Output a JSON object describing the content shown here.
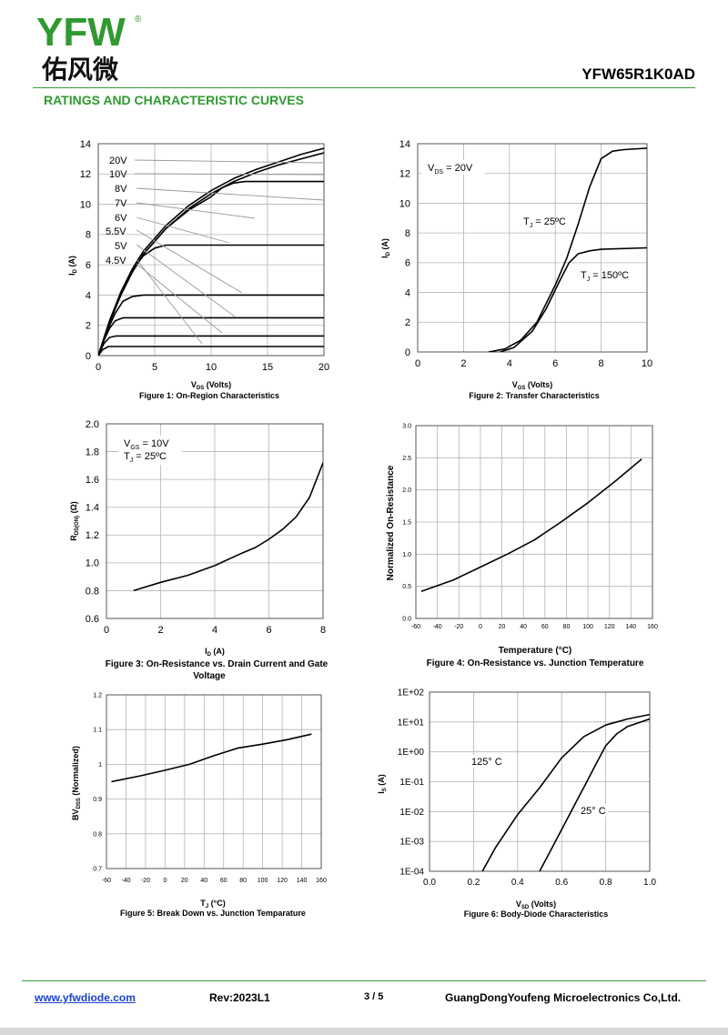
{
  "header": {
    "logo_latin": "YFW",
    "logo_registered": "®",
    "logo_chinese": "佑风微",
    "part_number": "YFW65R1K0AD",
    "section_title": "RATINGS AND CHARACTERISTIC CURVES"
  },
  "colors": {
    "brand_green": "#2f9a2f",
    "brand_yellow": "#f2c300",
    "link_blue": "#1a3fd0",
    "curve": "#000000",
    "grid": "#b4b4b4",
    "guide": "#999999"
  },
  "chart_data": [
    {
      "id": "fig1",
      "type": "line",
      "caption": "Figure 1: On-Region Characteristics",
      "xlabel_main": "V",
      "xlabel_sub": "DS",
      "xlabel_rest": " (Volts)",
      "ylabel_main": "I",
      "ylabel_sub": "D",
      "ylabel_rest": " (A)",
      "xlim": [
        0,
        20
      ],
      "ylim": [
        0,
        14
      ],
      "xticks": [
        "0",
        "5",
        "10",
        "15",
        "20"
      ],
      "yticks": [
        "0",
        "2",
        "4",
        "6",
        "8",
        "10",
        "12",
        "14"
      ],
      "series": [
        {
          "name": "20V",
          "points": [
            [
              0,
              0
            ],
            [
              1,
              2.3
            ],
            [
              2,
              4.2
            ],
            [
              3,
              5.7
            ],
            [
              4,
              6.9
            ],
            [
              6,
              8.6
            ],
            [
              8,
              9.9
            ],
            [
              10,
              10.9
            ],
            [
              12,
              11.7
            ],
            [
              14,
              12.3
            ],
            [
              16,
              12.8
            ],
            [
              18,
              13.3
            ],
            [
              20,
              13.7
            ]
          ]
        },
        {
          "name": "10V",
          "points": [
            [
              0,
              0
            ],
            [
              1,
              2.2
            ],
            [
              2,
              4.0
            ],
            [
              3,
              5.5
            ],
            [
              4,
              6.7
            ],
            [
              6,
              8.4
            ],
            [
              8,
              9.7
            ],
            [
              10,
              10.7
            ],
            [
              12,
              11.5
            ],
            [
              14,
              12.1
            ],
            [
              16,
              12.6
            ],
            [
              18,
              13.0
            ],
            [
              20,
              13.4
            ]
          ]
        },
        {
          "name": "8V",
          "points": [
            [
              0,
              0
            ],
            [
              1,
              2.2
            ],
            [
              2,
              4.0
            ],
            [
              3,
              5.5
            ],
            [
              4,
              6.7
            ],
            [
              6,
              8.4
            ],
            [
              8,
              9.6
            ],
            [
              10,
              10.5
            ],
            [
              11,
              11.1
            ],
            [
              12,
              11.4
            ],
            [
              13,
              11.5
            ],
            [
              20,
              11.5
            ]
          ]
        },
        {
          "name": "7V",
          "points": [
            [
              0,
              0
            ],
            [
              1,
              2.3
            ],
            [
              2,
              4.1
            ],
            [
              3,
              5.6
            ],
            [
              4,
              6.6
            ],
            [
              5,
              7.1
            ],
            [
              6,
              7.3
            ],
            [
              20,
              7.3
            ]
          ]
        },
        {
          "name": "6V",
          "points": [
            [
              0,
              0
            ],
            [
              0.7,
              1.5
            ],
            [
              1.5,
              2.8
            ],
            [
              2.2,
              3.6
            ],
            [
              3,
              3.9
            ],
            [
              4,
              4.0
            ],
            [
              20,
              4.0
            ]
          ]
        },
        {
          "name": "5.5V",
          "points": [
            [
              0,
              0
            ],
            [
              0.5,
              1.0
            ],
            [
              1,
              1.8
            ],
            [
              1.5,
              2.3
            ],
            [
              2.2,
              2.5
            ],
            [
              3,
              2.5
            ],
            [
              20,
              2.5
            ]
          ]
        },
        {
          "name": "5V",
          "points": [
            [
              0,
              0
            ],
            [
              0.5,
              0.8
            ],
            [
              1,
              1.2
            ],
            [
              1.6,
              1.3
            ],
            [
              20,
              1.3
            ]
          ]
        },
        {
          "name": "4.5V",
          "points": [
            [
              0,
              0
            ],
            [
              0.4,
              0.4
            ],
            [
              0.9,
              0.6
            ],
            [
              20,
              0.6
            ]
          ]
        }
      ],
      "annotations": [
        "20V",
        "10V",
        "8V",
        "7V",
        "6V",
        "5.5V",
        "5V",
        "4.5V"
      ]
    },
    {
      "id": "fig2",
      "type": "line",
      "caption": "Figure 2: Transfer Characteristics",
      "xlabel_main": "V",
      "xlabel_sub": "GS",
      "xlabel_rest": " (Volts)",
      "ylabel_main": "I",
      "ylabel_sub": "D",
      "ylabel_rest": " (A)",
      "xlim": [
        0,
        10
      ],
      "ylim": [
        0,
        14
      ],
      "xticks": [
        "0",
        "2",
        "4",
        "6",
        "8",
        "10"
      ],
      "yticks": [
        "0",
        "2",
        "4",
        "6",
        "8",
        "10",
        "12",
        "14"
      ],
      "series": [
        {
          "name": "TJ = 25ºC",
          "points": [
            [
              3.1,
              0
            ],
            [
              3.8,
              0.2
            ],
            [
              4.5,
              0.8
            ],
            [
              5.2,
              2.0
            ],
            [
              6.0,
              4.5
            ],
            [
              6.5,
              6.3
            ],
            [
              7.0,
              8.6
            ],
            [
              7.5,
              11.1
            ],
            [
              8.0,
              13.0
            ],
            [
              8.5,
              13.5
            ],
            [
              9.0,
              13.6
            ],
            [
              10,
              13.7
            ]
          ]
        },
        {
          "name": "TJ = 150ºC",
          "points": [
            [
              3.6,
              0
            ],
            [
              4.2,
              0.3
            ],
            [
              5.0,
              1.4
            ],
            [
              5.6,
              2.9
            ],
            [
              6.2,
              4.8
            ],
            [
              6.6,
              6.0
            ],
            [
              7.0,
              6.6
            ],
            [
              7.5,
              6.8
            ],
            [
              8.0,
              6.9
            ],
            [
              10,
              7.0
            ]
          ]
        }
      ],
      "annotations": [
        "V",
        "DS",
        " = 20V",
        "T",
        "J",
        " = 25ºC",
        "T",
        "J",
        " = 150ºC"
      ]
    },
    {
      "id": "fig3",
      "type": "line",
      "caption_line1": "Figure 3: On-Resistance vs. Drain Current and Gate",
      "caption_line2": "Voltage",
      "xlabel_main": "I",
      "xlabel_sub": "D",
      "xlabel_rest": " (A)",
      "ylabel_main": "R",
      "ylabel_sub": "DS(ON)",
      "ylabel_rest": " (Ω)",
      "xlim": [
        0,
        8
      ],
      "ylim": [
        0.6,
        2.0
      ],
      "xticks": [
        "0",
        "2",
        "4",
        "6",
        "8"
      ],
      "yticks": [
        "0.6",
        "0.8",
        "1.0",
        "1.2",
        "1.4",
        "1.6",
        "1.8",
        "2.0"
      ],
      "series": [
        {
          "name": "",
          "points": [
            [
              1,
              0.8
            ],
            [
              2,
              0.86
            ],
            [
              3,
              0.91
            ],
            [
              4,
              0.98
            ],
            [
              5,
              1.07
            ],
            [
              5.5,
              1.11
            ],
            [
              6,
              1.17
            ],
            [
              6.5,
              1.24
            ],
            [
              7,
              1.33
            ],
            [
              7.5,
              1.47
            ],
            [
              8,
              1.72
            ]
          ]
        }
      ],
      "annotations": [
        "V",
        "GS",
        " = 10V",
        "T",
        "J",
        " = 25ºC"
      ]
    },
    {
      "id": "fig4",
      "type": "line",
      "caption": "Figure 4: On-Resistance vs. Junction Temperature",
      "xlabel": "Temperature (°C)",
      "ylabel": "Normalized On-Resistance",
      "xlim": [
        -60,
        160
      ],
      "ylim": [
        0,
        3.0
      ],
      "xticks": [
        "-60",
        "-40",
        "-20",
        "0",
        "20",
        "40",
        "60",
        "80",
        "100",
        "120",
        "140",
        "160"
      ],
      "yticks": [
        "0.0",
        "0.5",
        "1.0",
        "1.5",
        "2.0",
        "2.5",
        "3.0"
      ],
      "series": [
        {
          "name": "",
          "points": [
            [
              -55,
              0.42
            ],
            [
              -25,
              0.6
            ],
            [
              0,
              0.8
            ],
            [
              25,
              1.0
            ],
            [
              50,
              1.22
            ],
            [
              75,
              1.5
            ],
            [
              100,
              1.8
            ],
            [
              125,
              2.13
            ],
            [
              150,
              2.48
            ]
          ]
        }
      ]
    },
    {
      "id": "fig5",
      "type": "line",
      "caption": "Figure 5: Break Down vs. Junction Temparature",
      "xlabel_main": "T",
      "xlabel_sub": "J",
      "xlabel_rest": " (°C)",
      "ylabel_main": "BV",
      "ylabel_sub": "DSS",
      "ylabel_rest": " (Normalized)",
      "xlim": [
        -60,
        160
      ],
      "ylim": [
        0.7,
        1.2
      ],
      "xticks": [
        "-60",
        "-40",
        "-20",
        "0",
        "20",
        "40",
        "60",
        "80",
        "100",
        "120",
        "140",
        "160"
      ],
      "yticks": [
        "0.7",
        "0.8",
        "0.9",
        "1",
        "1.1",
        "1.2"
      ],
      "series": [
        {
          "name": "",
          "points": [
            [
              -55,
              0.95
            ],
            [
              -25,
              0.967
            ],
            [
              0,
              0.983
            ],
            [
              25,
              1.0
            ],
            [
              50,
              1.025
            ],
            [
              75,
              1.047
            ],
            [
              100,
              1.058
            ],
            [
              125,
              1.071
            ],
            [
              150,
              1.087
            ]
          ]
        }
      ]
    },
    {
      "id": "fig6",
      "type": "line",
      "caption": "Figure 6: Body-Diode Characteristics",
      "xlabel_main": "V",
      "xlabel_sub": "SD",
      "xlabel_rest": " (Volts)",
      "ylabel_main": "I",
      "ylabel_sub": "S",
      "ylabel_rest": " (A)",
      "xlim": [
        0,
        1.0
      ],
      "ylim_log10": [
        -4,
        2
      ],
      "yscale": "log",
      "xticks": [
        "0.0",
        "0.2",
        "0.4",
        "0.6",
        "0.8",
        "1.0"
      ],
      "yticks": [
        "1E-04",
        "1E-03",
        "1E-02",
        "1E-01",
        "1E+00",
        "1E+01",
        "1E+02"
      ],
      "series": [
        {
          "name": "125° C",
          "points": [
            [
              0.24,
              0.0001
            ],
            [
              0.3,
              0.00063
            ],
            [
              0.4,
              0.0079
            ],
            [
              0.5,
              0.063
            ],
            [
              0.6,
              0.63
            ],
            [
              0.7,
              3.2
            ],
            [
              0.8,
              7.9
            ],
            [
              0.9,
              12.6
            ],
            [
              1.0,
              17.8
            ]
          ]
        },
        {
          "name": "25° C",
          "points": [
            [
              0.5,
              0.0001
            ],
            [
              0.55,
              0.0005
            ],
            [
              0.6,
              0.0025
            ],
            [
              0.65,
              0.0126
            ],
            [
              0.7,
              0.063
            ],
            [
              0.75,
              0.32
            ],
            [
              0.8,
              1.6
            ],
            [
              0.85,
              4.0
            ],
            [
              0.9,
              7.1
            ],
            [
              1.0,
              12.6
            ]
          ]
        }
      ],
      "annotations": [
        "125° C",
        "25° C"
      ]
    }
  ],
  "footer": {
    "url": "www.yfwdiode.com",
    "revision": "Rev:2023L1",
    "page": "3 / 5",
    "company": "GuangDongYoufeng Microelectronics Co,Ltd."
  }
}
